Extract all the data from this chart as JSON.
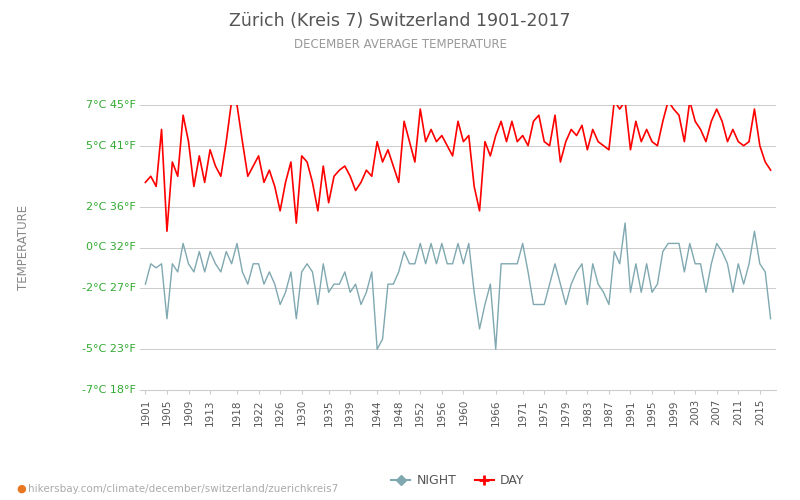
{
  "title": "Zürich (Kreis 7) Switzerland 1901-2017",
  "subtitle": "DECEMBER AVERAGE TEMPERATURE",
  "ylabel": "TEMPERATURE",
  "url_text": "hikersbay.com/climate/december/switzerland/zuerichkreis7",
  "years": [
    1901,
    1902,
    1903,
    1904,
    1905,
    1906,
    1907,
    1908,
    1909,
    1910,
    1911,
    1912,
    1913,
    1914,
    1915,
    1916,
    1917,
    1918,
    1919,
    1920,
    1921,
    1922,
    1923,
    1924,
    1925,
    1926,
    1927,
    1928,
    1929,
    1930,
    1931,
    1932,
    1933,
    1934,
    1935,
    1936,
    1937,
    1938,
    1939,
    1940,
    1941,
    1942,
    1943,
    1944,
    1945,
    1946,
    1947,
    1948,
    1949,
    1950,
    1951,
    1952,
    1953,
    1954,
    1955,
    1956,
    1957,
    1958,
    1959,
    1960,
    1961,
    1962,
    1963,
    1964,
    1965,
    1966,
    1967,
    1968,
    1969,
    1970,
    1971,
    1972,
    1973,
    1974,
    1975,
    1976,
    1977,
    1978,
    1979,
    1980,
    1981,
    1982,
    1983,
    1984,
    1985,
    1986,
    1987,
    1988,
    1989,
    1990,
    1991,
    1992,
    1993,
    1994,
    1995,
    1996,
    1997,
    1998,
    1999,
    2000,
    2001,
    2002,
    2003,
    2004,
    2005,
    2006,
    2007,
    2008,
    2009,
    2010,
    2011,
    2012,
    2013,
    2014,
    2015,
    2016,
    2017
  ],
  "day_temps": [
    3.2,
    3.5,
    3.0,
    5.8,
    0.8,
    4.2,
    3.5,
    6.5,
    5.2,
    3.0,
    4.5,
    3.2,
    4.8,
    4.0,
    3.5,
    5.2,
    7.2,
    7.0,
    5.2,
    3.5,
    4.0,
    4.5,
    3.2,
    3.8,
    3.0,
    1.8,
    3.2,
    4.2,
    1.2,
    4.5,
    4.2,
    3.2,
    1.8,
    4.0,
    2.2,
    3.5,
    3.8,
    4.0,
    3.5,
    2.8,
    3.2,
    3.8,
    3.5,
    5.2,
    4.2,
    4.8,
    4.0,
    3.2,
    6.2,
    5.2,
    4.2,
    6.8,
    5.2,
    5.8,
    5.2,
    5.5,
    5.0,
    4.5,
    6.2,
    5.2,
    5.5,
    3.0,
    1.8,
    5.2,
    4.5,
    5.5,
    6.2,
    5.2,
    6.2,
    5.2,
    5.5,
    5.0,
    6.2,
    6.5,
    5.2,
    5.0,
    6.5,
    4.2,
    5.2,
    5.8,
    5.5,
    6.0,
    4.8,
    5.8,
    5.2,
    5.0,
    4.8,
    7.2,
    6.8,
    7.2,
    4.8,
    6.2,
    5.2,
    5.8,
    5.2,
    5.0,
    6.2,
    7.2,
    6.8,
    6.5,
    5.2,
    7.2,
    6.2,
    5.8,
    5.2,
    6.2,
    6.8,
    6.2,
    5.2,
    5.8,
    5.2,
    5.0,
    5.2,
    6.8,
    5.0,
    4.2,
    3.8
  ],
  "night_temps": [
    -1.8,
    -0.8,
    -1.0,
    -0.8,
    -3.5,
    -0.8,
    -1.2,
    0.2,
    -0.8,
    -1.2,
    -0.2,
    -1.2,
    -0.2,
    -0.8,
    -1.2,
    -0.2,
    -0.8,
    0.2,
    -1.2,
    -1.8,
    -0.8,
    -0.8,
    -1.8,
    -1.2,
    -1.8,
    -2.8,
    -2.2,
    -1.2,
    -3.5,
    -1.2,
    -0.8,
    -1.2,
    -2.8,
    -0.8,
    -2.2,
    -1.8,
    -1.8,
    -1.2,
    -2.2,
    -1.8,
    -2.8,
    -2.2,
    -1.2,
    -5.0,
    -4.5,
    -1.8,
    -1.8,
    -1.2,
    -0.2,
    -0.8,
    -0.8,
    0.2,
    -0.8,
    0.2,
    -0.8,
    0.2,
    -0.8,
    -0.8,
    0.2,
    -0.8,
    0.2,
    -2.2,
    -4.0,
    -2.8,
    -1.8,
    -5.0,
    -0.8,
    -0.8,
    -0.8,
    -0.8,
    0.2,
    -1.2,
    -2.8,
    -2.8,
    -2.8,
    -1.8,
    -0.8,
    -1.8,
    -2.8,
    -1.8,
    -1.2,
    -0.8,
    -2.8,
    -0.8,
    -1.8,
    -2.2,
    -2.8,
    -0.2,
    -0.8,
    1.2,
    -2.2,
    -0.8,
    -2.2,
    -0.8,
    -2.2,
    -1.8,
    -0.2,
    0.2,
    0.2,
    0.2,
    -1.2,
    0.2,
    -0.8,
    -0.8,
    -2.2,
    -0.8,
    0.2,
    -0.2,
    -0.8,
    -2.2,
    -0.8,
    -1.8,
    -0.8,
    0.8,
    -0.8,
    -1.2,
    -3.5
  ],
  "xtick_years": [
    1901,
    1905,
    1909,
    1913,
    1918,
    1922,
    1926,
    1930,
    1935,
    1939,
    1944,
    1948,
    1952,
    1956,
    1960,
    1966,
    1971,
    1975,
    1979,
    1983,
    1987,
    1991,
    1995,
    1999,
    2003,
    2007,
    2011,
    2015
  ],
  "ylim_celsius": [
    -7,
    7
  ],
  "yticks_celsius": [
    -7,
    -5,
    -2,
    0,
    2,
    5,
    7
  ],
  "yticks_fahrenheit": [
    18,
    23,
    27,
    32,
    36,
    41,
    45
  ],
  "day_color": "#ff0000",
  "night_color": "#7fa8b0",
  "title_color": "#555555",
  "subtitle_color": "#999999",
  "label_color_green": "#33aa33",
  "label_color_blue": "#4466cc",
  "ylabel_color": "#888888",
  "bg_color": "#ffffff",
  "grid_color": "#cccccc",
  "url_color": "#aaaaaa",
  "url_icon_color": "#e87722"
}
